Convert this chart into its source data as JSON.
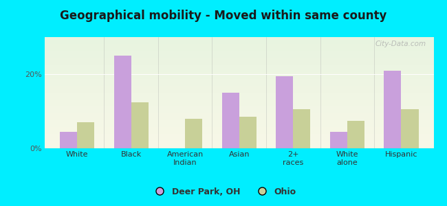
{
  "title": "Geographical mobility - Moved within same county",
  "categories": [
    "White",
    "Black",
    "American\nIndian",
    "Asian",
    "2+\nraces",
    "White\nalone",
    "Hispanic"
  ],
  "deer_park_values": [
    4.5,
    25.0,
    0,
    15.0,
    19.5,
    4.5,
    21.0
  ],
  "ohio_values": [
    7.0,
    12.5,
    8.0,
    8.5,
    10.5,
    7.5,
    10.5
  ],
  "bar_color_deer_park": "#c9a0dc",
  "bar_color_ohio": "#c8d098",
  "background_outer": "#00eeff",
  "ytick_labels": [
    "0%",
    "20%"
  ],
  "ytick_values": [
    0,
    20
  ],
  "ylim": [
    0,
    30
  ],
  "legend_label_1": "Deer Park, OH",
  "legend_label_2": "Ohio",
  "watermark": "City-Data.com",
  "title_fontsize": 12,
  "tick_fontsize": 8,
  "legend_fontsize": 9,
  "title_color": "#1a1a1a"
}
